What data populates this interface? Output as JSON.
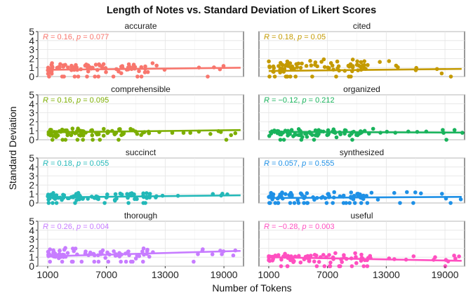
{
  "chart_data": {
    "type": "scatter",
    "title": "Length of Notes vs. Standard Deviation of Likert Scores",
    "xlabel": "Number of Tokens",
    "ylabel": "Standard Deviation",
    "xlim": [
      0,
      21000
    ],
    "ylim": [
      0,
      5
    ],
    "xticks": [
      1000,
      7000,
      13000,
      19000
    ],
    "yticks": [
      0,
      1,
      2,
      3,
      4,
      5
    ],
    "grid": true,
    "legend": "none",
    "panels": [
      {
        "name": "accurate",
        "color": "#F8766D",
        "r": "0.16",
        "p": "0.077",
        "fit": [
          0.75,
          0.98
        ],
        "seed": 11,
        "lo": 0.0,
        "hi": 1.9
      },
      {
        "name": "cited",
        "color": "#C49A00",
        "r": "0.18",
        "p": "0.05",
        "fit": [
          0.62,
          0.85
        ],
        "seed": 23,
        "lo": 0.0,
        "hi": 2.3
      },
      {
        "name": "comprehensible",
        "color": "#7CAE00",
        "r": "0.16",
        "p": "0.095",
        "fit": [
          0.82,
          1.08
        ],
        "seed": 37,
        "lo": 0.0,
        "hi": 1.6
      },
      {
        "name": "organized",
        "color": "#19B35C",
        "r": "−0.12",
        "p": "0.212",
        "fit": [
          0.88,
          0.8
        ],
        "seed": 41,
        "lo": 0.0,
        "hi": 1.5
      },
      {
        "name": "succinct",
        "color": "#22B8B8",
        "r": "0.18",
        "p": "0.055",
        "fit": [
          0.62,
          0.85
        ],
        "seed": 53,
        "lo": 0.0,
        "hi": 1.4
      },
      {
        "name": "synthesized",
        "color": "#1E90E6",
        "r": "0.057",
        "p": "0.555",
        "fit": [
          0.55,
          0.68
        ],
        "seed": 67,
        "lo": 0.0,
        "hi": 1.6
      },
      {
        "name": "thorough",
        "color": "#C77CFF",
        "r": "0.26",
        "p": "0.004",
        "fit": [
          1.1,
          1.7
        ],
        "seed": 71,
        "lo": 0.5,
        "hi": 2.4
      },
      {
        "name": "useful",
        "color": "#FF4FC0",
        "r": "−0.28",
        "p": "0.003",
        "fit": [
          1.0,
          0.6
        ],
        "seed": 83,
        "lo": 0.0,
        "hi": 1.8
      }
    ]
  }
}
